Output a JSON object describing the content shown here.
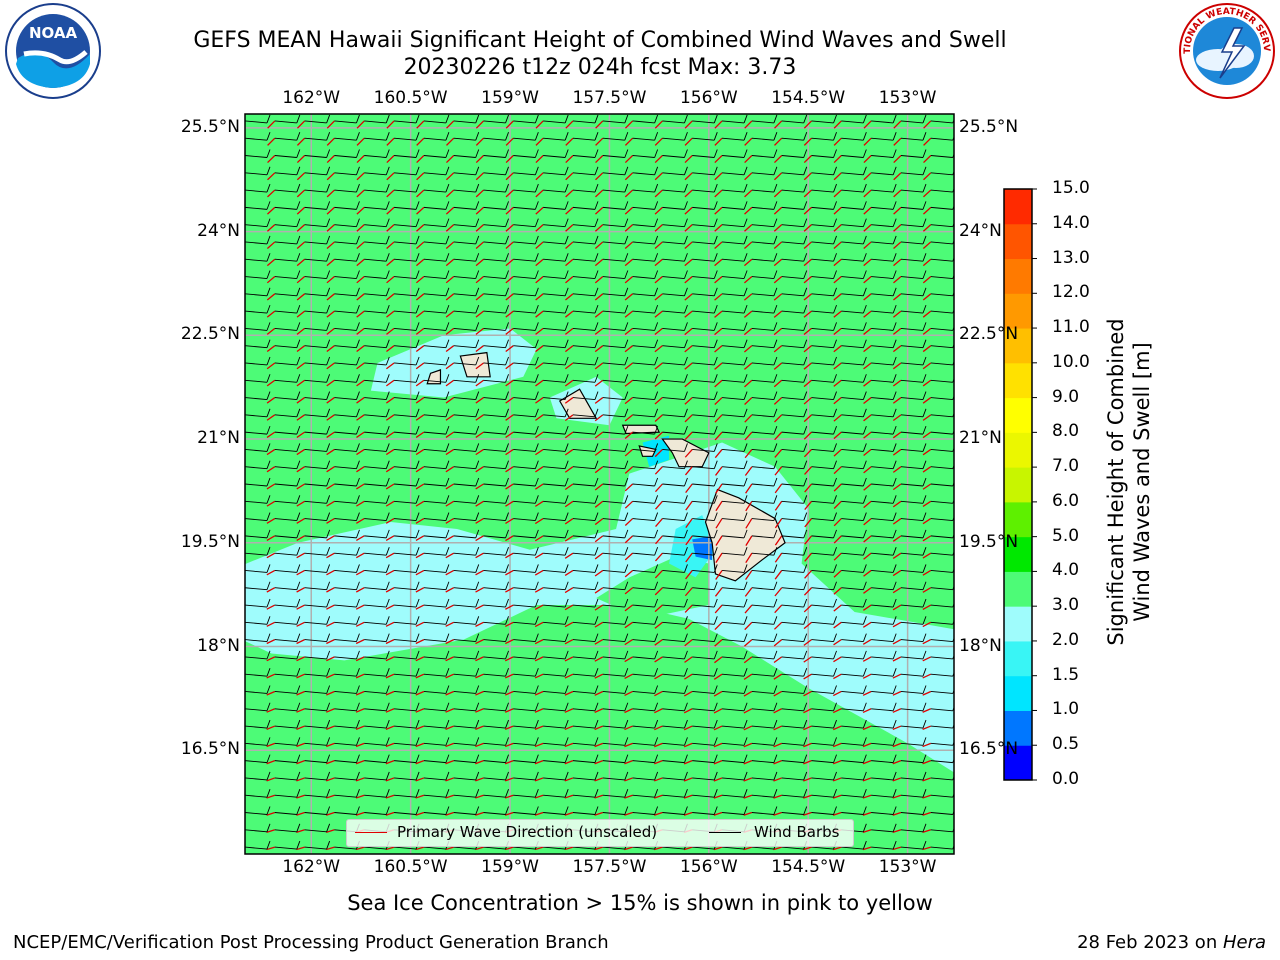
{
  "header": {
    "title_line1": "GEFS MEAN Hawaii Significant Height of Combined Wind Waves and Swell",
    "title_line2": "20230226 t12z 024h fcst   Max: 3.73"
  },
  "logos": {
    "left": {
      "icon": "noaa-logo",
      "text": "NOAA",
      "ring_text": "NATIONAL OCEANIC AND ATMOSPHERIC ADMINISTRATION · U.S. DEPARTMENT OF COMMERCE"
    },
    "right": {
      "icon": "national-weather-service-logo",
      "ring_text": "NATIONAL WEATHER SERVICE"
    }
  },
  "map": {
    "lon_labels": [
      "162°W",
      "160.5°W",
      "159°W",
      "157.5°W",
      "156°W",
      "154.5°W",
      "153°W"
    ],
    "lat_labels": [
      "25.5°N",
      "24°N",
      "22.5°N",
      "21°N",
      "19.5°N",
      "18°N",
      "16.5°N"
    ],
    "lon_range": [
      -163,
      -152.3
    ],
    "lat_range": [
      15,
      25.7
    ],
    "grid": true,
    "colors": {
      "land": "#efe9d7",
      "wave_arrow": "#e00000",
      "wind_barb": "#000000",
      "gridline": "#b0b0b0"
    }
  },
  "legend": {
    "placement": "bottom-center",
    "items": [
      {
        "label": "Primary Wave Direction (unscaled)",
        "color": "#e00000"
      },
      {
        "label": "Wind Barbs",
        "color": "#000000"
      }
    ]
  },
  "colorbar": {
    "label_line1": "Significant Height of Combined",
    "label_line2": "Wind Waves and Swell [m]",
    "ticks": [
      "15.0",
      "14.0",
      "13.0",
      "12.0",
      "11.0",
      "10.0",
      "9.0",
      "8.0",
      "7.0",
      "6.0",
      "5.0",
      "4.0",
      "3.0",
      "2.0",
      "1.5",
      "1.0",
      "0.5",
      "0.0"
    ],
    "colors_bottom_to_top": [
      "#0000ff",
      "#0077ff",
      "#00e5ff",
      "#39f5f5",
      "#9ffcfc",
      "#4dfb77",
      "#00e800",
      "#5ef000",
      "#c8f500",
      "#ebf700",
      "#ffff00",
      "#ffe100",
      "#ffbf00",
      "#ff9900",
      "#ff7a00",
      "#ff5500",
      "#ff2a00",
      "#ff0000"
    ]
  },
  "footer": {
    "note": "Sea Ice Concentration > 15% is shown in pink to yellow",
    "credit": "NCEP/EMC/Verification Post Processing Product Generation Branch",
    "date_prefix": "28 Feb 2023 on ",
    "machine": "Hera"
  }
}
